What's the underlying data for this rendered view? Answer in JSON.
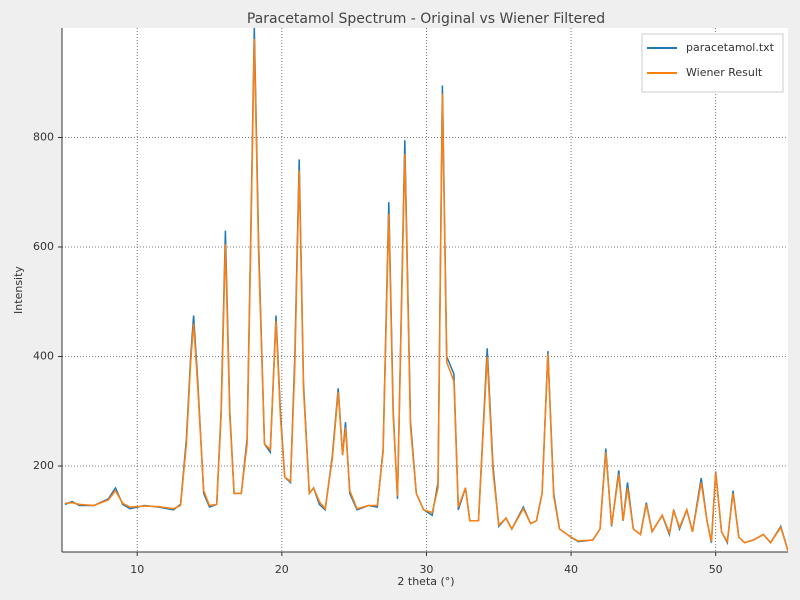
{
  "chart_data": {
    "type": "line",
    "title": "Paracetamol Spectrum - Original vs Wiener Filtered",
    "x_label": "2 theta (°)",
    "y_label": "Intensity",
    "x": [
      5.0,
      5.5,
      6.0,
      7.0,
      8.0,
      8.5,
      9.0,
      9.5,
      10.5,
      11.5,
      12.5,
      13.0,
      13.4,
      13.7,
      13.9,
      14.2,
      14.6,
      15.0,
      15.5,
      15.8,
      16.1,
      16.4,
      16.7,
      17.2,
      17.6,
      17.9,
      18.1,
      18.4,
      18.8,
      19.2,
      19.6,
      19.9,
      20.2,
      20.6,
      20.9,
      21.2,
      21.5,
      21.9,
      22.2,
      22.6,
      23.0,
      23.5,
      23.9,
      24.2,
      24.4,
      24.7,
      25.2,
      26.0,
      26.6,
      27.0,
      27.4,
      27.7,
      28.0,
      28.5,
      28.9,
      29.3,
      29.8,
      30.4,
      30.8,
      31.1,
      31.4,
      31.9,
      32.2,
      32.7,
      33.0,
      33.6,
      34.2,
      34.6,
      35.0,
      35.5,
      35.9,
      36.7,
      37.2,
      37.6,
      38.0,
      38.4,
      38.8,
      39.2,
      40.0,
      40.5,
      41.5,
      42.0,
      42.4,
      42.8,
      43.3,
      43.6,
      43.9,
      44.3,
      44.8,
      45.2,
      45.6,
      46.3,
      46.8,
      47.1,
      47.5,
      48.0,
      48.4,
      49.0,
      49.4,
      49.7,
      50.0,
      50.4,
      50.8,
      51.2,
      51.6,
      52.0,
      52.6,
      53.3,
      53.8,
      54.5,
      55.0
    ],
    "series": [
      {
        "name": "paracetamol.txt",
        "color": "#1f77b4",
        "values": [
          130,
          135,
          128,
          128,
          140,
          160,
          130,
          122,
          128,
          125,
          120,
          130,
          250,
          400,
          475,
          350,
          150,
          125,
          130,
          300,
          630,
          300,
          150,
          150,
          250,
          700,
          1000,
          600,
          240,
          225,
          475,
          300,
          180,
          170,
          400,
          760,
          350,
          150,
          160,
          130,
          120,
          220,
          342,
          220,
          280,
          150,
          120,
          128,
          125,
          230,
          682,
          300,
          140,
          795,
          280,
          150,
          120,
          110,
          170,
          895,
          400,
          368,
          120,
          160,
          100,
          100,
          415,
          200,
          90,
          105,
          85,
          125,
          95,
          100,
          150,
          410,
          150,
          85,
          70,
          62,
          65,
          85,
          232,
          90,
          192,
          100,
          170,
          85,
          75,
          133,
          80,
          110,
          75,
          120,
          85,
          120,
          80,
          178,
          100,
          60,
          190,
          80,
          60,
          155,
          70,
          60,
          65,
          75,
          60,
          90,
          45
        ]
      },
      {
        "name": "Wiener Result",
        "color": "#ff7f0e",
        "values": [
          132,
          133,
          130,
          128,
          138,
          155,
          132,
          125,
          127,
          126,
          122,
          128,
          240,
          390,
          460,
          340,
          155,
          128,
          130,
          290,
          605,
          290,
          150,
          150,
          240,
          680,
          980,
          580,
          240,
          230,
          465,
          290,
          180,
          172,
          380,
          740,
          340,
          150,
          160,
          135,
          122,
          215,
          335,
          220,
          270,
          155,
          122,
          128,
          128,
          225,
          660,
          290,
          145,
          770,
          270,
          150,
          120,
          115,
          160,
          880,
          390,
          355,
          125,
          160,
          100,
          100,
          400,
          190,
          92,
          105,
          85,
          122,
          95,
          100,
          150,
          405,
          145,
          85,
          70,
          63,
          65,
          85,
          225,
          92,
          185,
          100,
          160,
          85,
          75,
          130,
          80,
          110,
          78,
          118,
          88,
          120,
          80,
          170,
          100,
          62,
          188,
          80,
          62,
          150,
          70,
          60,
          65,
          75,
          60,
          88,
          45
        ]
      }
    ],
    "xlim": [
      4.8,
      55
    ],
    "ylim": [
      43,
      1000
    ],
    "xticks": [
      10,
      20,
      30,
      40,
      50
    ],
    "yticks": [
      200,
      400,
      600,
      800
    ],
    "grid": true,
    "legend": "upper right"
  }
}
